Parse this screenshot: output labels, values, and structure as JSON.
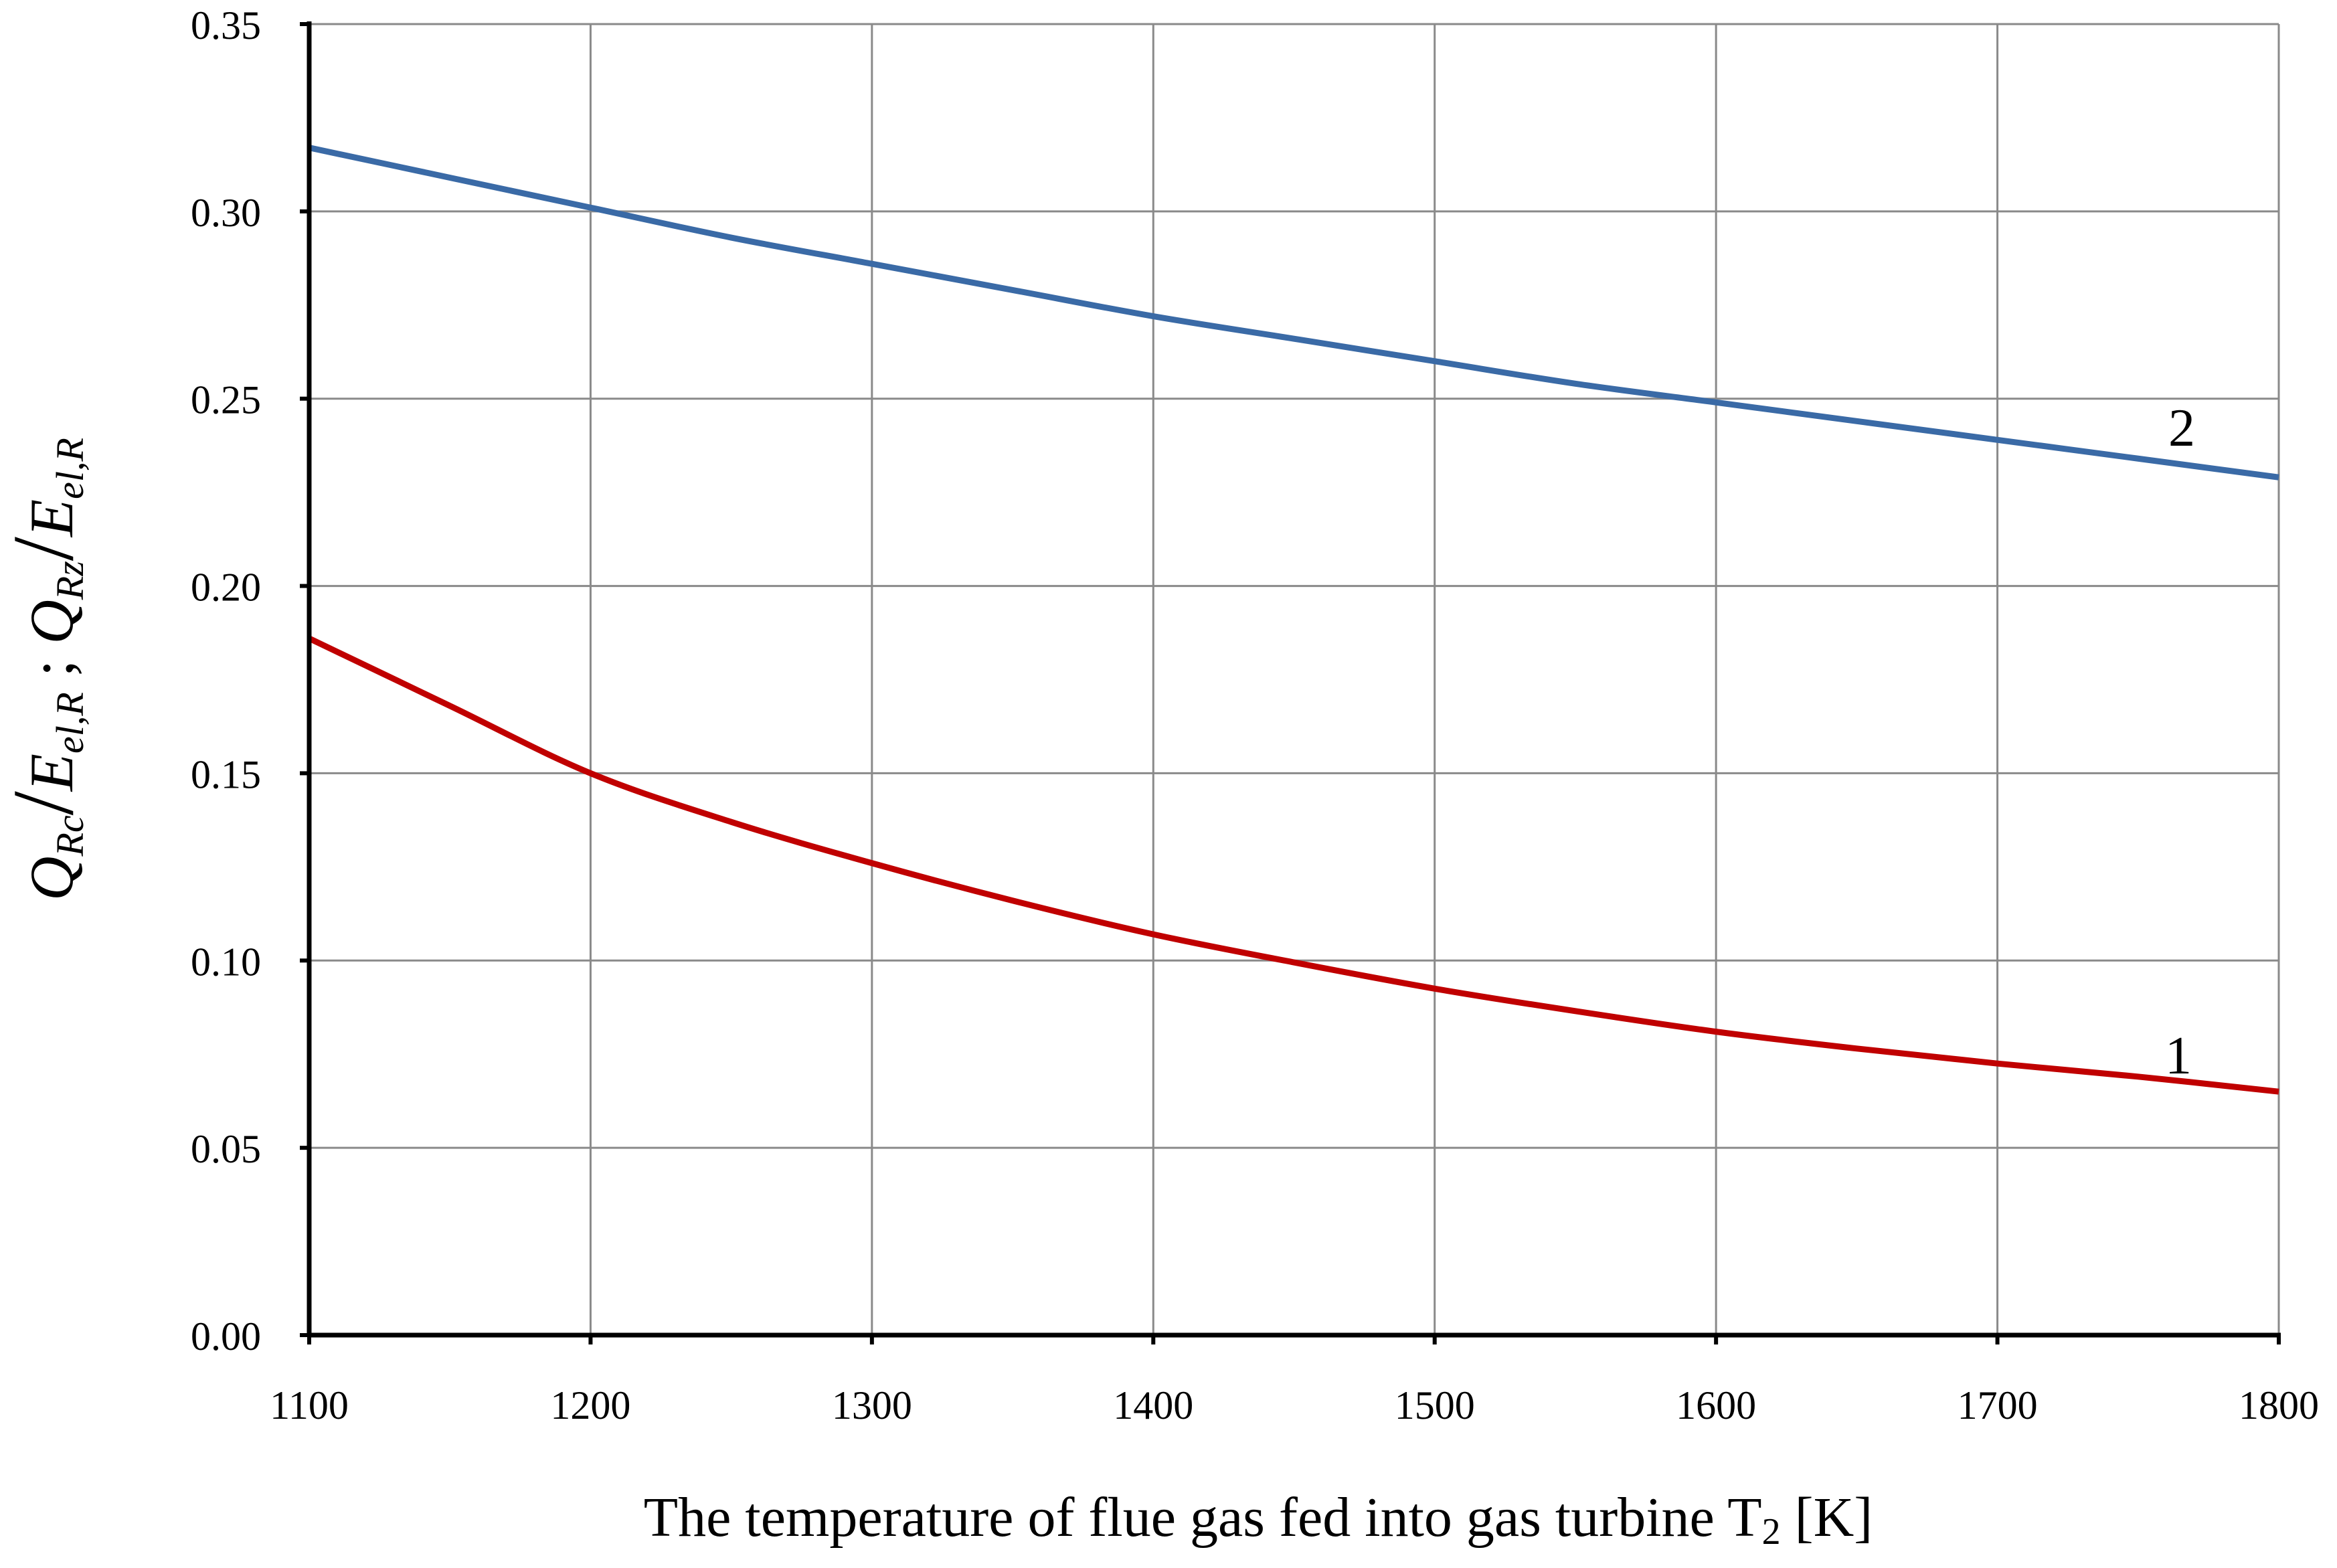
{
  "chart_data": {
    "type": "line",
    "title": "",
    "xlabel": "The temperature of flue gas fed into gas turbine T",
    "xlabel_sub": "2",
    "xlabel_unit": " [K]",
    "ylabel": {
      "q1": "Q",
      "q1_sub": "Rc",
      "e1": "E",
      "e1_sub": "el,R",
      "sep": " ; ",
      "q2": "Q",
      "q2_sub": "Rz",
      "e2": "E",
      "e2_sub": "el,R"
    },
    "xlim": [
      1100,
      1800
    ],
    "ylim": [
      0.0,
      0.35
    ],
    "xticks": [
      "1100",
      "1200",
      "1300",
      "1400",
      "1500",
      "1600",
      "1700",
      "1800"
    ],
    "yticks": [
      "0.00",
      "0.05",
      "0.10",
      "0.15",
      "0.20",
      "0.25",
      "0.30",
      "0.35"
    ],
    "grid": true,
    "legend": "none",
    "x": [
      1100,
      1150,
      1200,
      1250,
      1300,
      1350,
      1400,
      1450,
      1500,
      1550,
      1600,
      1650,
      1700,
      1750,
      1800
    ],
    "series": [
      {
        "name": "1",
        "color": "#c00000",
        "values": [
          0.186,
          0.168,
          0.15,
          0.137,
          0.126,
          0.116,
          0.107,
          0.0995,
          0.0925,
          0.0865,
          0.081,
          0.0765,
          0.0725,
          0.069,
          0.065
        ]
      },
      {
        "name": "2",
        "color": "#3a6aa6",
        "values": [
          0.317,
          0.309,
          0.301,
          0.293,
          0.286,
          0.279,
          0.272,
          0.266,
          0.26,
          0.254,
          0.249,
          0.244,
          0.239,
          0.234,
          0.229
        ]
      }
    ]
  }
}
